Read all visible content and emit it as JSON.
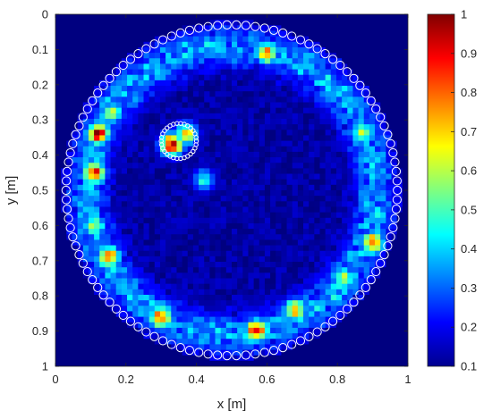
{
  "chart_data": {
    "type": "heatmap",
    "xlabel": "x [m]",
    "ylabel": "y [m]",
    "xlim": [
      0,
      1
    ],
    "ylim": [
      0,
      1
    ],
    "y_direction": "down",
    "x_ticks": [
      "0",
      "0.2",
      "0.4",
      "0.6",
      "0.8",
      "1"
    ],
    "y_ticks": [
      "0",
      "0.1",
      "0.2",
      "0.3",
      "0.4",
      "0.5",
      "0.6",
      "0.7",
      "0.8",
      "0.9",
      "1"
    ],
    "colorbar": {
      "colormap": "jet",
      "range": [
        0.1,
        1
      ],
      "ticks": [
        "0.1",
        "0.2",
        "0.3",
        "0.4",
        "0.5",
        "0.6",
        "0.7",
        "0.8",
        "0.9",
        "1"
      ]
    },
    "domain_circle": {
      "center": [
        0.5,
        0.5
      ],
      "radius": 0.47
    },
    "inclusion_circle": {
      "center": [
        0.35,
        0.36
      ],
      "radius": 0.05
    },
    "hotspots": [
      {
        "x": 0.12,
        "y": 0.34,
        "value": 0.95
      },
      {
        "x": 0.11,
        "y": 0.45,
        "value": 0.9
      },
      {
        "x": 0.16,
        "y": 0.28,
        "value": 0.6
      },
      {
        "x": 0.15,
        "y": 0.69,
        "value": 0.85
      },
      {
        "x": 0.11,
        "y": 0.6,
        "value": 0.6
      },
      {
        "x": 0.3,
        "y": 0.86,
        "value": 0.85
      },
      {
        "x": 0.57,
        "y": 0.9,
        "value": 0.9
      },
      {
        "x": 0.68,
        "y": 0.84,
        "value": 0.75
      },
      {
        "x": 0.9,
        "y": 0.65,
        "value": 0.85
      },
      {
        "x": 0.82,
        "y": 0.75,
        "value": 0.6
      },
      {
        "x": 0.6,
        "y": 0.11,
        "value": 0.75
      },
      {
        "x": 0.33,
        "y": 0.37,
        "value": 0.95
      },
      {
        "x": 0.37,
        "y": 0.34,
        "value": 0.7
      },
      {
        "x": 0.87,
        "y": 0.34,
        "value": 0.6
      },
      {
        "x": 0.42,
        "y": 0.47,
        "value": 0.45
      }
    ],
    "background_level": 0.13,
    "ring_level": 0.35
  },
  "colors": {
    "marker": "#ffffff",
    "axis": "#262626",
    "text": "#262626"
  }
}
